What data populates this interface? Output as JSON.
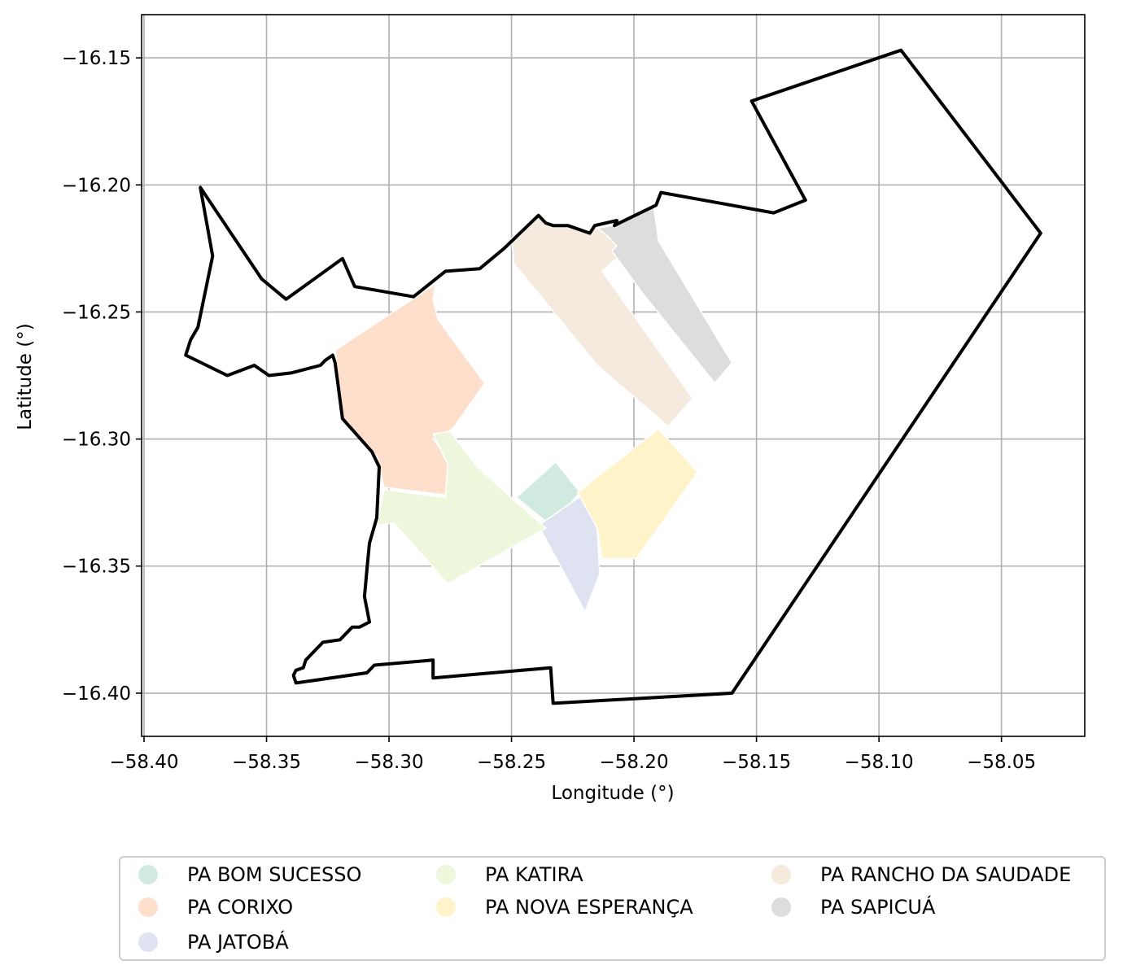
{
  "chart_data": {
    "type": "map",
    "xlabel": "Longitude (°)",
    "ylabel": "Latitude (°)",
    "xlim": [
      -58.401,
      -58.016
    ],
    "ylim": [
      -16.417,
      -16.133
    ],
    "grid": true,
    "x_ticks": [
      -58.4,
      -58.35,
      -58.3,
      -58.25,
      -58.2,
      -58.15,
      -58.1,
      -58.05
    ],
    "x_tick_labels": [
      "−58.40",
      "−58.35",
      "−58.30",
      "−58.25",
      "−58.20",
      "−58.15",
      "−58.10",
      "−58.05"
    ],
    "y_ticks": [
      -16.15,
      -16.2,
      -16.25,
      -16.3,
      -16.35,
      -16.4
    ],
    "y_tick_labels": [
      "−16.15",
      "−16.20",
      "−16.25",
      "−16.30",
      "−16.35",
      "−16.40"
    ],
    "boundary": [
      [
        -58.377,
        -16.201
      ],
      [
        -58.372,
        -16.228
      ],
      [
        -58.378,
        -16.256
      ],
      [
        -58.381,
        -16.261
      ],
      [
        -58.383,
        -16.267
      ],
      [
        -58.366,
        -16.275
      ],
      [
        -58.355,
        -16.271
      ],
      [
        -58.349,
        -16.275
      ],
      [
        -58.34,
        -16.274
      ],
      [
        -58.328,
        -16.271
      ],
      [
        -58.326,
        -16.269
      ],
      [
        -58.323,
        -16.267
      ],
      [
        -58.322,
        -16.27
      ],
      [
        -58.319,
        -16.292
      ],
      [
        -58.307,
        -16.305
      ],
      [
        -58.304,
        -16.311
      ],
      [
        -58.305,
        -16.331
      ],
      [
        -58.308,
        -16.341
      ],
      [
        -58.309,
        -16.351
      ],
      [
        -58.31,
        -16.362
      ],
      [
        -58.308,
        -16.372
      ],
      [
        -58.312,
        -16.374
      ],
      [
        -58.315,
        -16.374
      ],
      [
        -58.32,
        -16.379
      ],
      [
        -58.327,
        -16.38
      ],
      [
        -58.334,
        -16.387
      ],
      [
        -58.335,
        -16.39
      ],
      [
        -58.338,
        -16.391
      ],
      [
        -58.339,
        -16.393
      ],
      [
        -58.338,
        -16.396
      ],
      [
        -58.309,
        -16.392
      ],
      [
        -58.306,
        -16.389
      ],
      [
        -58.282,
        -16.387
      ],
      [
        -58.282,
        -16.394
      ],
      [
        -58.234,
        -16.39
      ],
      [
        -58.233,
        -16.404
      ],
      [
        -58.16,
        -16.4
      ],
      [
        -58.034,
        -16.219
      ],
      [
        -58.091,
        -16.147
      ],
      [
        -58.152,
        -16.167
      ],
      [
        -58.13,
        -16.206
      ],
      [
        -58.143,
        -16.211
      ],
      [
        -58.189,
        -16.203
      ],
      [
        -58.191,
        -16.208
      ],
      [
        -58.206,
        -16.215
      ],
      [
        -58.208,
        -16.216
      ],
      [
        -58.207,
        -16.214
      ],
      [
        -58.216,
        -16.216
      ],
      [
        -58.218,
        -16.219
      ],
      [
        -58.227,
        -16.216
      ],
      [
        -58.233,
        -16.216
      ],
      [
        -58.236,
        -16.215
      ],
      [
        -58.239,
        -16.212
      ],
      [
        -58.253,
        -16.225
      ],
      [
        -58.263,
        -16.233
      ],
      [
        -58.277,
        -16.234
      ],
      [
        -58.29,
        -16.244
      ],
      [
        -58.314,
        -16.24
      ],
      [
        -58.319,
        -16.229
      ],
      [
        -58.342,
        -16.245
      ],
      [
        -58.352,
        -16.237
      ],
      [
        -58.377,
        -16.201
      ]
    ],
    "series": [
      {
        "name": "PA BOM SUCESSO",
        "color": "#d1eadf",
        "polygon": [
          [
            -58.248,
            -16.323
          ],
          [
            -58.232,
            -16.309
          ],
          [
            -58.222,
            -16.321
          ],
          [
            -58.234,
            -16.334
          ]
        ]
      },
      {
        "name": "PA CORIXO",
        "color": "#fddfcb",
        "polygon": [
          [
            -58.322,
            -16.265
          ],
          [
            -58.281,
            -16.239
          ],
          [
            -58.282,
            -16.245
          ],
          [
            -58.28,
            -16.253
          ],
          [
            -58.261,
            -16.278
          ],
          [
            -58.274,
            -16.296
          ],
          [
            -58.282,
            -16.3
          ],
          [
            -58.275,
            -16.309
          ],
          [
            -58.277,
            -16.322
          ],
          [
            -58.302,
            -16.319
          ],
          [
            -58.305,
            -16.307
          ],
          [
            -58.319,
            -16.293
          ]
        ]
      },
      {
        "name": "PA JATOBÁ",
        "color": "#dfe3f1",
        "polygon": [
          [
            -58.239,
            -16.334
          ],
          [
            -58.221,
            -16.322
          ],
          [
            -58.215,
            -16.335
          ],
          [
            -58.214,
            -16.353
          ],
          [
            -58.22,
            -16.368
          ]
        ]
      },
      {
        "name": "PA KATIRA",
        "color": "#eef7dc",
        "polygon": [
          [
            -58.275,
            -16.297
          ],
          [
            -58.282,
            -16.298
          ],
          [
            -58.276,
            -16.31
          ],
          [
            -58.277,
            -16.323
          ],
          [
            -58.302,
            -16.32
          ],
          [
            -58.305,
            -16.334
          ],
          [
            -58.298,
            -16.333
          ],
          [
            -58.276,
            -16.357
          ],
          [
            -58.236,
            -16.335
          ],
          [
            -58.249,
            -16.324
          ],
          [
            -58.264,
            -16.311
          ]
        ]
      },
      {
        "name": "PA NOVA ESPERANÇA",
        "color": "#fff3c9",
        "polygon": [
          [
            -58.223,
            -16.321
          ],
          [
            -58.19,
            -16.296
          ],
          [
            -58.174,
            -16.313
          ],
          [
            -58.199,
            -16.347
          ],
          [
            -58.213,
            -16.347
          ],
          [
            -58.215,
            -16.335
          ]
        ]
      },
      {
        "name": "PA RANCHO DA SAUDADE",
        "color": "#f4ebde",
        "polygon": [
          [
            -58.25,
            -16.221
          ],
          [
            -58.239,
            -16.212
          ],
          [
            -58.236,
            -16.215
          ],
          [
            -58.233,
            -16.216
          ],
          [
            -58.227,
            -16.216
          ],
          [
            -58.218,
            -16.219
          ],
          [
            -58.216,
            -16.216
          ],
          [
            -58.213,
            -16.217
          ],
          [
            -58.208,
            -16.222
          ],
          [
            -58.206,
            -16.228
          ],
          [
            -58.213,
            -16.234
          ],
          [
            -58.176,
            -16.284
          ],
          [
            -58.186,
            -16.295
          ],
          [
            -58.215,
            -16.271
          ],
          [
            -58.249,
            -16.231
          ]
        ]
      },
      {
        "name": "PA SAPICUÁ",
        "color": "#dddddd",
        "polygon": [
          [
            -58.215,
            -16.217
          ],
          [
            -58.209,
            -16.216
          ],
          [
            -58.206,
            -16.215
          ],
          [
            -58.192,
            -16.208
          ],
          [
            -58.19,
            -16.222
          ],
          [
            -58.16,
            -16.27
          ],
          [
            -58.167,
            -16.278
          ],
          [
            -58.197,
            -16.242
          ],
          [
            -58.209,
            -16.226
          ],
          [
            -58.207,
            -16.224
          ],
          [
            -58.212,
            -16.219
          ]
        ]
      }
    ]
  },
  "legend": {
    "placement": "bottom-center",
    "items": [
      {
        "label": "PA BOM SUCESSO",
        "color": "#d1eadf"
      },
      {
        "label": "PA CORIXO",
        "color": "#fddfcb"
      },
      {
        "label": "PA JATOBÁ",
        "color": "#dfe3f1"
      },
      {
        "label": "PA KATIRA",
        "color": "#eef7dc"
      },
      {
        "label": "PA NOVA ESPERANÇA",
        "color": "#fff3c9"
      },
      {
        "label": "PA RANCHO DA SAUDADE",
        "color": "#f4ebde"
      },
      {
        "label": "PA SAPICUÁ",
        "color": "#dddddd"
      }
    ]
  }
}
